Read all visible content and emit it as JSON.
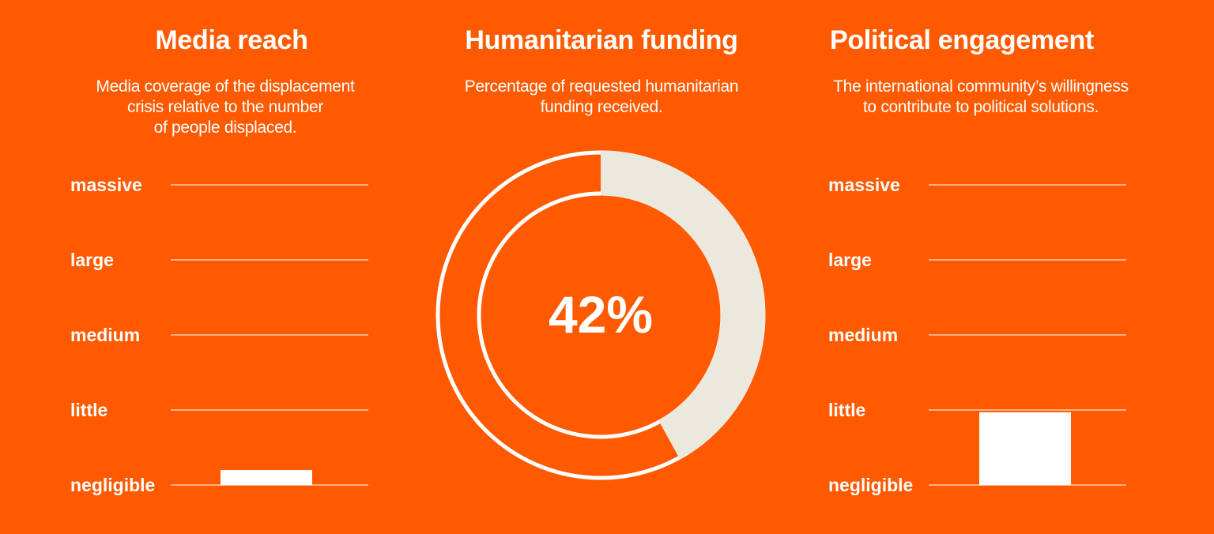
{
  "panels": {
    "media": {
      "title": "Media reach",
      "description": "Media coverage of the displacement\ncrisis relative to the number\nof people displaced."
    },
    "funding": {
      "title": "Humanitarian funding",
      "description": "Percentage of requested humanitarian\nfunding received."
    },
    "political": {
      "title": "Political engagement",
      "description": "The international community’s willingness\nto contribute to political solutions."
    }
  },
  "chart_data": [
    {
      "type": "bar",
      "title": "Media reach",
      "levels": [
        "massive",
        "large",
        "medium",
        "little",
        "negligible"
      ],
      "value": 0.2,
      "ylim": [
        0,
        4
      ],
      "color": "#FFFFFF"
    },
    {
      "type": "pie",
      "title": "Humanitarian funding",
      "value_percent": 42,
      "label": "42%",
      "filled_color": "#EBE8DD",
      "background_color": "#FF5A00"
    },
    {
      "type": "bar",
      "title": "Political engagement",
      "levels": [
        "massive",
        "large",
        "medium",
        "little",
        "negligible"
      ],
      "value": 0.97,
      "ylim": [
        0,
        4
      ],
      "color": "#FFFFFF"
    }
  ],
  "colors": {
    "background": "#FF5A00",
    "text": "#FFFFFF",
    "ring_fill": "#EBE8DD"
  }
}
